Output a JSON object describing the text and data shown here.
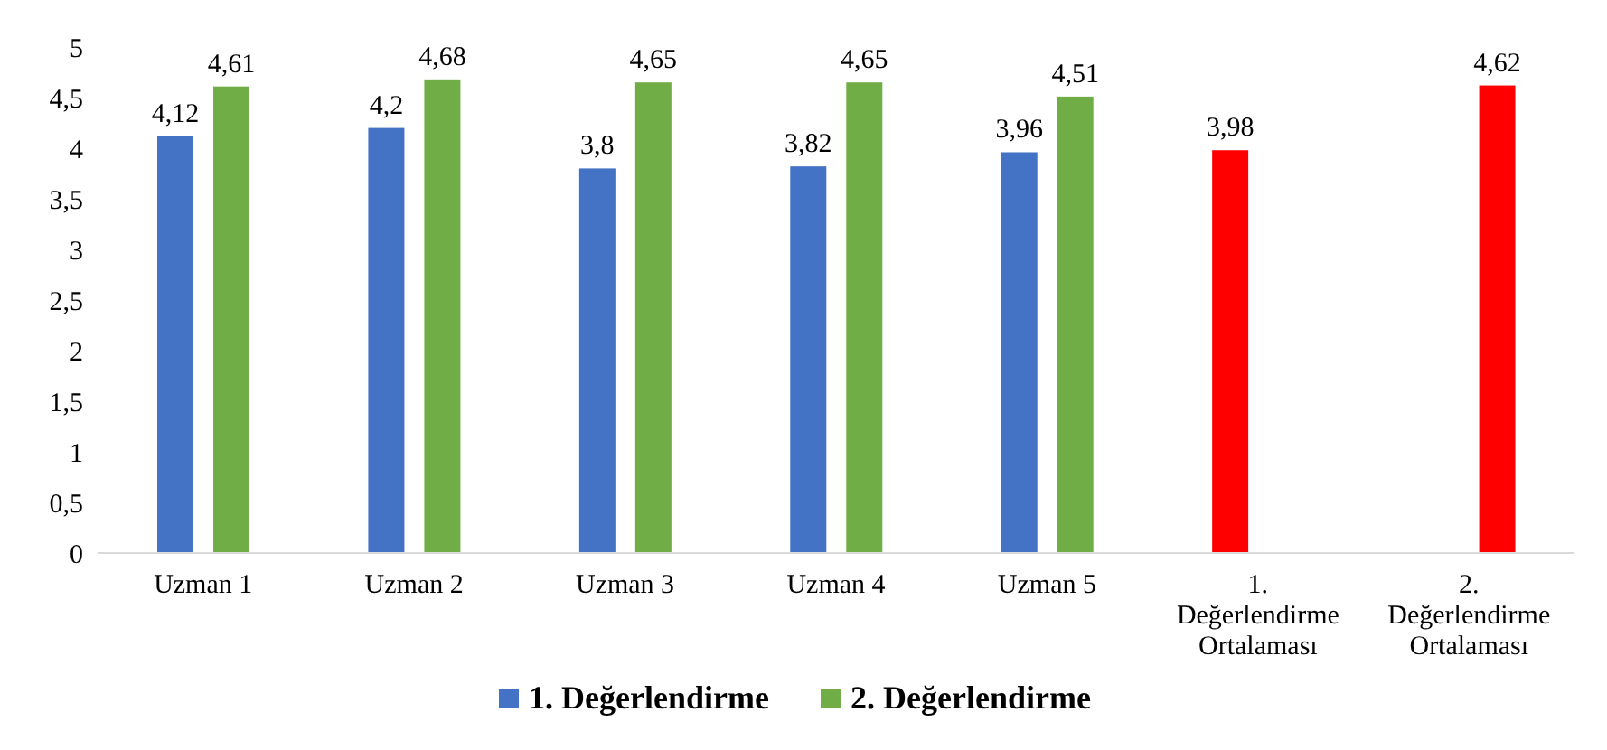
{
  "chart_data": {
    "type": "bar",
    "categories": [
      "Uzman 1",
      "Uzman 2",
      "Uzman 3",
      "Uzman 4",
      "Uzman 5",
      "1. Değerlendirme Ortalaması",
      "2. Değerlendirme Ortalaması"
    ],
    "series": [
      {
        "name": "1. Değerlendirme",
        "color": "#4472c4",
        "colors": [
          "#4472c4",
          "#4472c4",
          "#4472c4",
          "#4472c4",
          "#4472c4",
          "#ff0000",
          null
        ],
        "values": [
          4.12,
          4.2,
          3.8,
          3.82,
          3.96,
          3.98,
          null
        ],
        "value_labels": [
          "4,12",
          "4,2",
          "3,8",
          "3,82",
          "3,96",
          "3,98",
          null
        ]
      },
      {
        "name": "2. Değerlendirme",
        "color": "#70ad47",
        "colors": [
          "#70ad47",
          "#70ad47",
          "#70ad47",
          "#70ad47",
          "#70ad47",
          null,
          "#ff0000"
        ],
        "values": [
          4.61,
          4.68,
          4.65,
          4.65,
          4.51,
          null,
          4.62
        ],
        "value_labels": [
          "4,61",
          "4,68",
          "4,65",
          "4,65",
          "4,51",
          null,
          "4,62"
        ]
      }
    ],
    "ylim": [
      0,
      5
    ],
    "yticks": [
      0,
      {
        "value": 0.5,
        "label": "0,5"
      },
      1,
      {
        "value": 1.5,
        "label": "1,5"
      },
      2,
      {
        "value": 2.5,
        "label": "2,5"
      },
      3,
      {
        "value": 3.5,
        "label": "3,5"
      },
      4,
      {
        "value": 4.5,
        "label": "4,5"
      },
      5
    ],
    "grid": false,
    "legend": "bottom"
  }
}
